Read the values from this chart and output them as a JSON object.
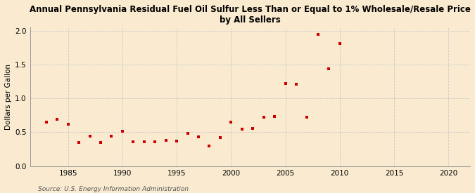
{
  "title_line1": "Annual Pennsylvania Residual Fuel Oil Sulfur Less Than or Equal to 1% Wholesale/Resale Price",
  "title_line2": "by All Sellers",
  "ylabel": "Dollars per Gallon",
  "source": "Source: U.S. Energy Information Administration",
  "xlim": [
    1981.5,
    2022
  ],
  "ylim": [
    0.0,
    2.05
  ],
  "xticks": [
    1985,
    1990,
    1995,
    2000,
    2005,
    2010,
    2015,
    2020
  ],
  "yticks": [
    0.0,
    0.5,
    1.0,
    1.5,
    2.0
  ],
  "background_color": "#faebd0",
  "plot_bg_color": "#faebd0",
  "marker_color": "#cc0000",
  "years": [
    1983,
    1984,
    1985,
    1986,
    1987,
    1988,
    1989,
    1990,
    1991,
    1992,
    1993,
    1994,
    1995,
    1996,
    1997,
    1998,
    1999,
    2000,
    2001,
    2002,
    2003,
    2004,
    2005,
    2006,
    2007,
    2008,
    2009,
    2010
  ],
  "values": [
    0.65,
    0.69,
    0.62,
    0.35,
    0.44,
    0.35,
    0.44,
    0.52,
    0.36,
    0.36,
    0.36,
    0.38,
    0.37,
    0.48,
    0.43,
    0.3,
    0.42,
    0.65,
    0.55,
    0.56,
    0.72,
    0.73,
    1.22,
    1.21,
    0.72,
    1.95,
    1.44,
    1.81
  ]
}
